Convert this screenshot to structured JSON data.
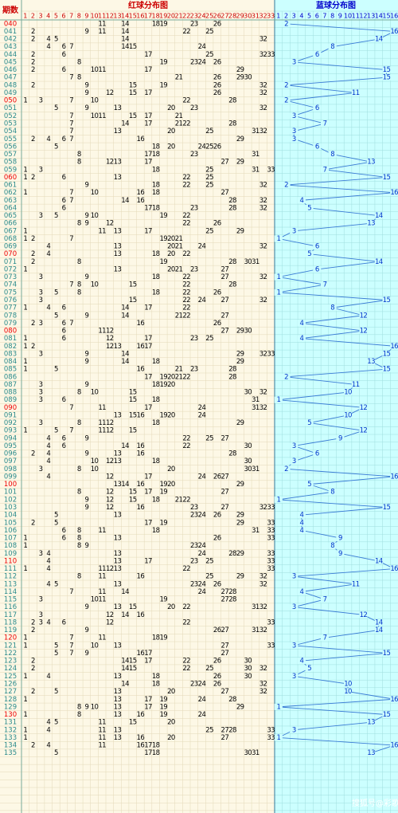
{
  "header": {
    "issue_label": "期数",
    "red_title": "红球分布图",
    "blue_title": "蓝球分布图",
    "red_columns": [
      1,
      2,
      3,
      4,
      5,
      6,
      7,
      8,
      9,
      10,
      11,
      12,
      13,
      14,
      15,
      16,
      17,
      18,
      19,
      20,
      21,
      22,
      23,
      24,
      25,
      26,
      27,
      28,
      29,
      30,
      31,
      32,
      33
    ],
    "blue_columns": [
      1,
      2,
      3,
      4,
      5,
      6,
      7,
      8,
      9,
      10,
      11,
      12,
      13,
      14,
      15,
      16
    ]
  },
  "rows": [
    {
      "issue": "040",
      "red": [
        11,
        14,
        18,
        19,
        23,
        26
      ],
      "blue": 2
    },
    {
      "issue": "041",
      "red": [
        2,
        9,
        11,
        14,
        22,
        25
      ],
      "blue": 16
    },
    {
      "issue": "042",
      "red": [
        2,
        4,
        5,
        14,
        32
      ],
      "blue": 14
    },
    {
      "issue": "043",
      "red": [
        4,
        6,
        7,
        14,
        15,
        24
      ],
      "blue": 8
    },
    {
      "issue": "044",
      "red": [
        2,
        6,
        17,
        25,
        32,
        33
      ],
      "blue": 6
    },
    {
      "issue": "045",
      "red": [
        2,
        8,
        19,
        23,
        24,
        26
      ],
      "blue": 3
    },
    {
      "issue": "046",
      "red": [
        2,
        6,
        10,
        11,
        17,
        29
      ],
      "blue": 15
    },
    {
      "issue": "047",
      "red": [
        7,
        8,
        21,
        26,
        29,
        30
      ],
      "blue": 15
    },
    {
      "issue": "048",
      "red": [
        2,
        9,
        15,
        19,
        26,
        32
      ],
      "blue": 2
    },
    {
      "issue": "049",
      "red": [
        9,
        12,
        15,
        17,
        26,
        32
      ],
      "blue": 11
    },
    {
      "issue": "050",
      "red": [
        1,
        3,
        7,
        10,
        22,
        28
      ],
      "blue": 2
    },
    {
      "issue": "051",
      "red": [
        5,
        9,
        13,
        20,
        23,
        32
      ],
      "blue": 6
    },
    {
      "issue": "052",
      "red": [
        7,
        10,
        11,
        15,
        17,
        21
      ],
      "blue": 3
    },
    {
      "issue": "053",
      "red": [
        7,
        14,
        17,
        21,
        22,
        28
      ],
      "blue": 7
    },
    {
      "issue": "054",
      "red": [
        7,
        13,
        20,
        25,
        31,
        32
      ],
      "blue": 3
    },
    {
      "issue": "055",
      "red": [
        2,
        4,
        6,
        7,
        16,
        29
      ],
      "blue": 3
    },
    {
      "issue": "056",
      "red": [
        5,
        18,
        20,
        24,
        25,
        26
      ],
      "blue": 6
    },
    {
      "issue": "057",
      "red": [
        8,
        17,
        18,
        23,
        31
      ],
      "blue": 8
    },
    {
      "issue": "058",
      "red": [
        8,
        12,
        13,
        17,
        27,
        29
      ],
      "blue": 13
    },
    {
      "issue": "059",
      "red": [
        1,
        3,
        18,
        25,
        31,
        33
      ],
      "blue": 7
    },
    {
      "issue": "060",
      "red": [
        1,
        2,
        6,
        13,
        22,
        25
      ],
      "blue": 15
    },
    {
      "issue": "061",
      "red": [
        9,
        18,
        22,
        25,
        32
      ],
      "blue": 2
    },
    {
      "issue": "062",
      "red": [
        1,
        7,
        10,
        16,
        18,
        27
      ],
      "blue": 16
    },
    {
      "issue": "063",
      "red": [
        6,
        7,
        14,
        16,
        28,
        32
      ],
      "blue": 4
    },
    {
      "issue": "064",
      "red": [
        6,
        17,
        18,
        23,
        28,
        32
      ],
      "blue": 5
    },
    {
      "issue": "065",
      "red": [
        3,
        5,
        9,
        10,
        19,
        22
      ],
      "blue": 14
    },
    {
      "issue": "066",
      "red": [
        8,
        9,
        12,
        22,
        26
      ],
      "blue": 13
    },
    {
      "issue": "067",
      "red": [
        1,
        11,
        13,
        17,
        25,
        29
      ],
      "blue": 3
    },
    {
      "issue": "068",
      "red": [
        1,
        2,
        7,
        19,
        20,
        21
      ],
      "blue": 1
    },
    {
      "issue": "069",
      "red": [
        4,
        13,
        20,
        21,
        24,
        32
      ],
      "blue": 6
    },
    {
      "issue": "070",
      "red": [
        2,
        4,
        13,
        18,
        20,
        22
      ],
      "blue": 5
    },
    {
      "issue": "071",
      "red": [
        2,
        8,
        19,
        28,
        30,
        31
      ],
      "blue": 14
    },
    {
      "issue": "072",
      "red": [
        1,
        13,
        20,
        21,
        23,
        27
      ],
      "blue": 6
    },
    {
      "issue": "073",
      "red": [
        3,
        9,
        18,
        22,
        27,
        32
      ],
      "blue": 1
    },
    {
      "issue": "074",
      "red": [
        7,
        8,
        10,
        15,
        22,
        28
      ],
      "blue": 7
    },
    {
      "issue": "075",
      "red": [
        3,
        5,
        8,
        18,
        22,
        26
      ],
      "blue": 1
    },
    {
      "issue": "076",
      "red": [
        3,
        15,
        22,
        24,
        27,
        32
      ],
      "blue": 15
    },
    {
      "issue": "077",
      "red": [
        1,
        4,
        6,
        14,
        17,
        22
      ],
      "blue": 8
    },
    {
      "issue": "078",
      "red": [
        5,
        9,
        14,
        21,
        22,
        27
      ],
      "blue": 12
    },
    {
      "issue": "079",
      "red": [
        2,
        3,
        6,
        7,
        16,
        26
      ],
      "blue": 4
    },
    {
      "issue": "080",
      "red": [
        6,
        11,
        12,
        27,
        29,
        30
      ],
      "blue": 12
    },
    {
      "issue": "081",
      "red": [
        1,
        6,
        12,
        17,
        23,
        25
      ],
      "blue": 4
    },
    {
      "issue": "082",
      "red": [
        1,
        2,
        12,
        13,
        16,
        17
      ],
      "blue": 16
    },
    {
      "issue": "083",
      "red": [
        3,
        9,
        14,
        29,
        32,
        33
      ],
      "blue": 15
    },
    {
      "issue": "084",
      "red": [
        1,
        9,
        14,
        18,
        29
      ],
      "blue": 13
    },
    {
      "issue": "085",
      "red": [
        1,
        5,
        16,
        21,
        23,
        28
      ],
      "blue": 15
    },
    {
      "issue": "086",
      "red": [
        17,
        19,
        20,
        21,
        22,
        28
      ],
      "blue": 2
    },
    {
      "issue": "087",
      "red": [
        3,
        9,
        18,
        19,
        20
      ],
      "blue": 11
    },
    {
      "issue": "088",
      "red": [
        3,
        8,
        10,
        15,
        30,
        32
      ],
      "blue": 10
    },
    {
      "issue": "089",
      "red": [
        3,
        6,
        15,
        18,
        31
      ],
      "blue": 1
    },
    {
      "issue": "090",
      "red": [
        7,
        11,
        17,
        24,
        31,
        32
      ],
      "blue": 12
    },
    {
      "issue": "091",
      "red": [
        13,
        15,
        16,
        19,
        20,
        24
      ],
      "blue": 10
    },
    {
      "issue": "092",
      "red": [
        3,
        8,
        11,
        12,
        18,
        29
      ],
      "blue": 5
    },
    {
      "issue": "093",
      "red": [
        1,
        5,
        7,
        11,
        12,
        15
      ],
      "blue": 12
    },
    {
      "issue": "094",
      "red": [
        4,
        6,
        9,
        22,
        25,
        27
      ],
      "blue": 9
    },
    {
      "issue": "095",
      "red": [
        4,
        6,
        14,
        16,
        22,
        30
      ],
      "blue": 3
    },
    {
      "issue": "096",
      "red": [
        2,
        4,
        9,
        13,
        16,
        28
      ],
      "blue": 6
    },
    {
      "issue": "097",
      "red": [
        4,
        10,
        12,
        13,
        18,
        30
      ],
      "blue": 3
    },
    {
      "issue": "098",
      "red": [
        3,
        8,
        10,
        20,
        30,
        31
      ],
      "blue": 2
    },
    {
      "issue": "099",
      "red": [
        4,
        12,
        17,
        24,
        26,
        27
      ],
      "blue": 16
    },
    {
      "issue": "100",
      "red": [
        13,
        14,
        16,
        19,
        20,
        29
      ],
      "blue": 5
    },
    {
      "issue": "101",
      "red": [
        8,
        12,
        15,
        17,
        19,
        27
      ],
      "blue": 8
    },
    {
      "issue": "102",
      "red": [
        9,
        12,
        15,
        18,
        21,
        22
      ],
      "blue": 1
    },
    {
      "issue": "103",
      "red": [
        9,
        12,
        16,
        23,
        27,
        32,
        33
      ],
      "blue": 15
    },
    {
      "issue": "104",
      "red": [
        5,
        13,
        23,
        24,
        26,
        29
      ],
      "blue": 4
    },
    {
      "issue": "105",
      "red": [
        2,
        5,
        17,
        19,
        29,
        33
      ],
      "blue": 4
    },
    {
      "issue": "106",
      "red": [
        6,
        8,
        11,
        18,
        31,
        33
      ],
      "blue": 4
    },
    {
      "issue": "107",
      "red": [
        1,
        6,
        8,
        13,
        26,
        33
      ],
      "blue": 9
    },
    {
      "issue": "108",
      "red": [
        1,
        8,
        9,
        23,
        24
      ],
      "blue": 8
    },
    {
      "issue": "109",
      "red": [
        3,
        4,
        13,
        24,
        28,
        29,
        33
      ],
      "blue": 9
    },
    {
      "issue": "110",
      "red": [
        4,
        13,
        17,
        23,
        25,
        33
      ],
      "blue": 14
    },
    {
      "issue": "111",
      "red": [
        1,
        4,
        11,
        12,
        13,
        22,
        33
      ],
      "blue": 16
    },
    {
      "issue": "112",
      "red": [
        8,
        11,
        16,
        25,
        29,
        32
      ],
      "blue": 3
    },
    {
      "issue": "113",
      "red": [
        4,
        5,
        13,
        23,
        24,
        26,
        32
      ],
      "blue": 11
    },
    {
      "issue": "114",
      "red": [
        7,
        11,
        14,
        24,
        27,
        28
      ],
      "blue": 4
    },
    {
      "issue": "115",
      "red": [
        3,
        10,
        11,
        19,
        27,
        28
      ],
      "blue": 7
    },
    {
      "issue": "116",
      "red": [
        9,
        13,
        15,
        20,
        22,
        31,
        32
      ],
      "blue": 3
    },
    {
      "issue": "117",
      "red": [
        3,
        12,
        14,
        16
      ],
      "blue": 12
    },
    {
      "issue": "118",
      "red": [
        2,
        3,
        4,
        6,
        12,
        22,
        33
      ],
      "blue": 14
    },
    {
      "issue": "119",
      "red": [
        2,
        9,
        26,
        27,
        31,
        32
      ],
      "blue": 14
    },
    {
      "issue": "120",
      "red": [
        1,
        7,
        11,
        18,
        19
      ],
      "blue": 7
    },
    {
      "issue": "121",
      "red": [
        1,
        5,
        7,
        10,
        13,
        27,
        33
      ],
      "blue": 3
    },
    {
      "issue": "122",
      "red": [
        5,
        7,
        9,
        16,
        17,
        27
      ],
      "blue": 15
    },
    {
      "issue": "123",
      "red": [
        2,
        14,
        15,
        17,
        22,
        26,
        30
      ],
      "blue": 4
    },
    {
      "issue": "124",
      "red": [
        2,
        14,
        15,
        22,
        25,
        30,
        32
      ],
      "blue": 5
    },
    {
      "issue": "125",
      "red": [
        1,
        4,
        13,
        18,
        26,
        30
      ],
      "blue": 3
    },
    {
      "issue": "126",
      "red": [
        14,
        18,
        23,
        24,
        26,
        32
      ],
      "blue": 10
    },
    {
      "issue": "127",
      "red": [
        2,
        5,
        13,
        20,
        27,
        32
      ],
      "blue": 10
    },
    {
      "issue": "128",
      "red": [
        1,
        13,
        17,
        19,
        24,
        28
      ],
      "blue": 16
    },
    {
      "issue": "129",
      "red": [
        8,
        9,
        10,
        13,
        17,
        19,
        29
      ],
      "blue": 1
    },
    {
      "issue": "130",
      "red": [
        1,
        8,
        13,
        16,
        19,
        24
      ],
      "blue": 15
    },
    {
      "issue": "131",
      "red": [
        4,
        5,
        11,
        15,
        20
      ],
      "blue": 13
    },
    {
      "issue": "132",
      "red": [
        1,
        4,
        11,
        13,
        25,
        27,
        28,
        33
      ],
      "blue": 3
    },
    {
      "issue": "133",
      "red": [
        1,
        11,
        13,
        16,
        20,
        27,
        33
      ],
      "blue": 1
    },
    {
      "issue": "134",
      "red": [
        2,
        4,
        11,
        16,
        17,
        18
      ],
      "blue": 16
    },
    {
      "issue": "135",
      "red": [
        5,
        17,
        18,
        30,
        31
      ],
      "blue": 13
    }
  ],
  "watermark": "搜狐号@彩歌"
}
